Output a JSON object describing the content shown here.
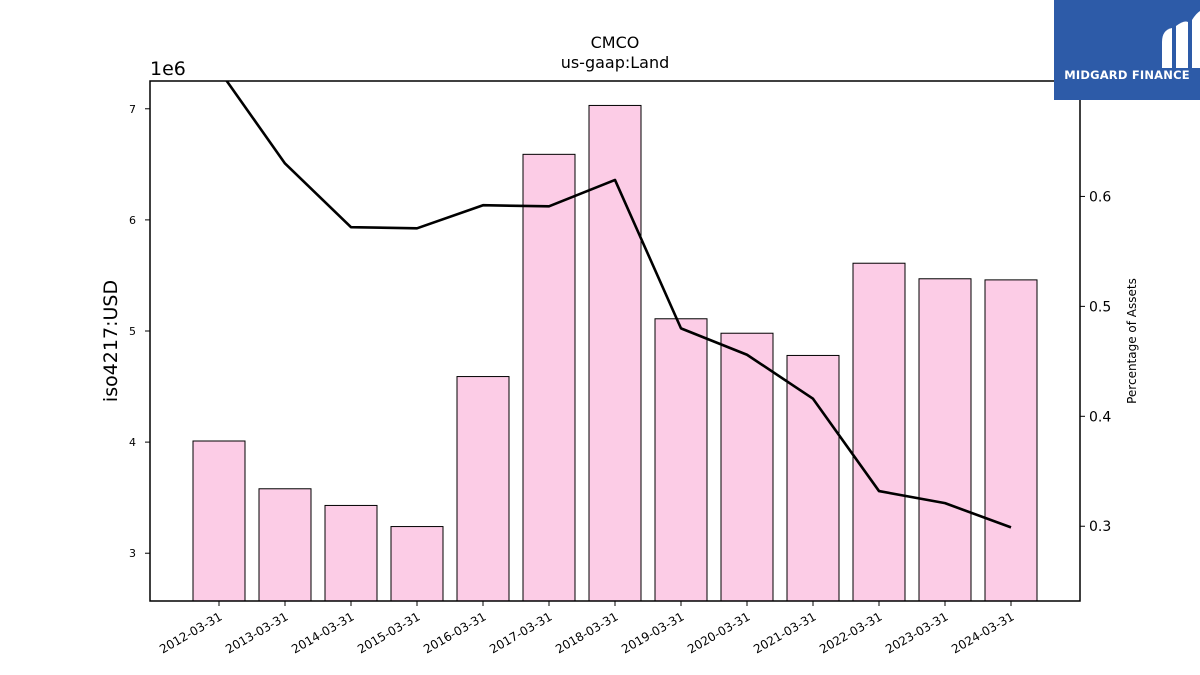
{
  "brand": {
    "name": "MIDGARD FINANCE",
    "bg_color": "#2d5ba8"
  },
  "chart_data": {
    "type": "bar",
    "title": "CMCO",
    "subtitle": "us-gaap:Land",
    "ylabel": "iso4217:USD",
    "y2label": "Percentage of Assets",
    "y_multiplier_label": "1e6",
    "ylim": [
      2.57,
      7.25
    ],
    "y_ticks": [
      3,
      4,
      5,
      6,
      7
    ],
    "y2lim": [
      0.232,
      0.705
    ],
    "y2_ticks": [
      0.3,
      0.4,
      0.5,
      0.6
    ],
    "categories": [
      "2012-03-31",
      "2013-03-31",
      "2014-03-31",
      "2015-03-31",
      "2016-03-31",
      "2017-03-31",
      "2018-03-31",
      "2019-03-31",
      "2020-03-31",
      "2021-03-31",
      "2022-03-31",
      "2023-03-31",
      "2024-03-31"
    ],
    "series": [
      {
        "type": "bar",
        "axis": "left",
        "color": "#fccce6",
        "values": [
          4.01,
          3.58,
          3.43,
          3.24,
          4.59,
          6.59,
          7.03,
          5.11,
          4.98,
          4.78,
          5.61,
          5.47,
          5.46
        ]
      },
      {
        "type": "line",
        "axis": "right",
        "color": "#000000",
        "values": [
          0.715,
          0.63,
          0.572,
          0.571,
          0.592,
          0.591,
          0.615,
          0.48,
          0.456,
          0.416,
          0.332,
          0.321,
          0.299
        ]
      }
    ],
    "grid": false,
    "legend": "none"
  }
}
